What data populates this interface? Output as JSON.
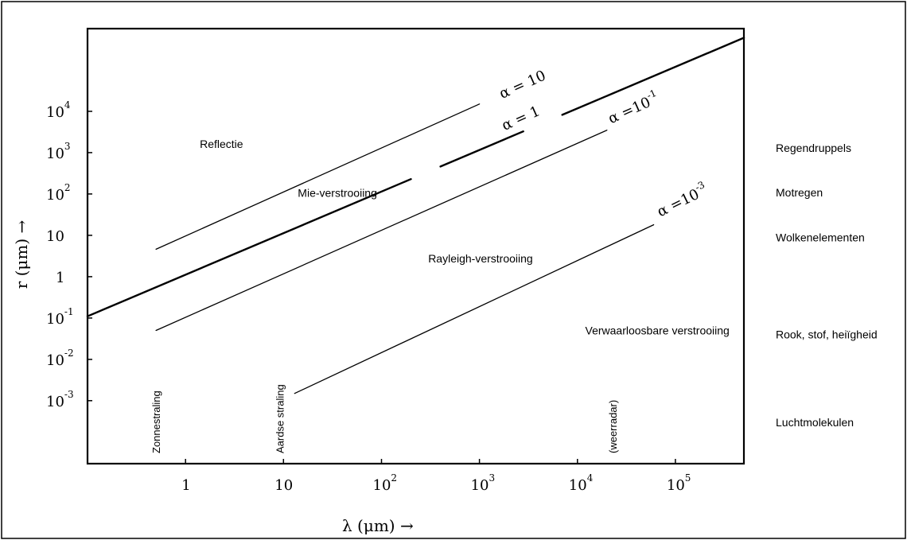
{
  "chart_data": {
    "type": "line",
    "x_axis": {
      "label": "λ (μm) →",
      "scale": "log",
      "ticks": [
        {
          "base": "1",
          "exp": "",
          "value": 1
        },
        {
          "base": "10",
          "exp": "",
          "value": 10
        },
        {
          "base": "10",
          "exp": "2",
          "value": 100
        },
        {
          "base": "10",
          "exp": "3",
          "value": 1000
        },
        {
          "base": "10",
          "exp": "4",
          "value": 10000
        },
        {
          "base": "10",
          "exp": "5",
          "value": 100000
        }
      ],
      "range": [
        0.1,
        500000
      ]
    },
    "y_axis": {
      "label": "r (μm) →",
      "scale": "log",
      "ticks": [
        {
          "base": "10",
          "exp": "4",
          "value": 10000
        },
        {
          "base": "10",
          "exp": "3",
          "value": 1000
        },
        {
          "base": "10",
          "exp": "2",
          "value": 100
        },
        {
          "base": "10",
          "exp": "",
          "value": 10
        },
        {
          "base": "1",
          "exp": "",
          "value": 1
        },
        {
          "base": "10",
          "exp": "-1",
          "value": 0.1
        },
        {
          "base": "10",
          "exp": "-2",
          "value": 0.01
        },
        {
          "base": "10",
          "exp": "-3",
          "value": 0.001
        }
      ],
      "range": [
        3e-05,
        1000000
      ]
    },
    "series": [
      {
        "name": "α = 10",
        "lam": [
          0.5,
          1000
        ],
        "r": [
          4.6,
          15000
        ],
        "width": 1.3,
        "label": {
          "text": "α = 10",
          "lam": 1700,
          "r": 20000,
          "angle": -24
        }
      },
      {
        "name": "α = 1",
        "lam": [
          0.1,
          500000
        ],
        "r": [
          0.11,
          600000
        ],
        "width": 2.4,
        "gaps": [
          [
            200,
            400
          ],
          [
            2800,
            7000
          ]
        ],
        "label": {
          "text": "α = 1",
          "lam": 1800,
          "r": 3400,
          "angle": -24
        }
      },
      {
        "name": "α = 10⁻¹",
        "lam": [
          0.5,
          20000
        ],
        "r": [
          0.05,
          3500
        ],
        "width": 1.3,
        "label": {
          "text": "α =10",
          "sup": "-1",
          "lam": 22000,
          "r": 5000,
          "angle": -24
        }
      },
      {
        "name": "α = 10⁻³",
        "lam": [
          13,
          60000
        ],
        "r": [
          0.0015,
          18
        ],
        "width": 1.3,
        "label": {
          "text": "α =10",
          "sup": "-3",
          "lam": 70000,
          "r": 28,
          "angle": -26
        }
      }
    ],
    "regions": [
      {
        "text": "Reflectie",
        "lam": 1.4,
        "r": 1300
      },
      {
        "text": "Mie-verstrooiing",
        "lam": 14,
        "r": 85
      },
      {
        "text": "Rayleigh-verstrooiing",
        "lam": 300,
        "r": 2.2
      },
      {
        "text": "Verwaarloosbare verstrooiing",
        "lam": 12000,
        "r": 0.04
      }
    ],
    "vertical_labels": [
      {
        "text": "Zonnestraling",
        "lam": 0.55
      },
      {
        "text": "Aardse straling",
        "lam": 10
      },
      {
        "text": "(weerradar)",
        "lam": 25000
      }
    ],
    "side_labels": [
      {
        "text": "Regendruppels",
        "r": 1300
      },
      {
        "text": "Motregen",
        "r": 110
      },
      {
        "text": "Wolkenelementen",
        "r": 9
      },
      {
        "text": "Rook, stof, heiïgheid",
        "r": 0.04
      },
      {
        "text": "Luchtmolekulen",
        "r": 0.0003
      }
    ]
  }
}
